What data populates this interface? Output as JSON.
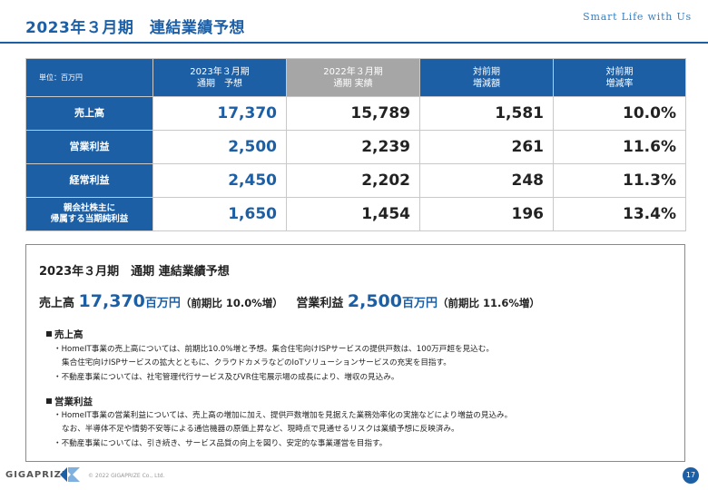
{
  "header": {
    "title": "2023年３月期　連結業績予想",
    "tagline": "Smart Life with Us"
  },
  "table": {
    "unit_label": "単位：百万円",
    "columns": [
      [
        "2023年３月期",
        "通期　予想"
      ],
      [
        "2022年３月期",
        "通期 実績"
      ],
      [
        "対前期",
        "増減額"
      ],
      [
        "対前期",
        "増減率"
      ]
    ],
    "rows": [
      {
        "label": [
          "売上高"
        ],
        "plan": "17,370",
        "actual": "15,789",
        "diff": "1,581",
        "rate": "10.0%"
      },
      {
        "label": [
          "営業利益"
        ],
        "plan": "2,500",
        "actual": "2,239",
        "diff": "261",
        "rate": "11.6%"
      },
      {
        "label": [
          "経常利益"
        ],
        "plan": "2,450",
        "actual": "2,202",
        "diff": "248",
        "rate": "11.3%"
      },
      {
        "label": [
          "親会社株主に",
          "帰属する当期純利益"
        ],
        "plan": "1,650",
        "actual": "1,454",
        "diff": "196",
        "rate": "13.4%"
      }
    ]
  },
  "summary": {
    "title": "2023年３月期　通期 連結業績予想",
    "sales_label": "売上高",
    "sales_value": "17,370",
    "sales_unit": "百万円",
    "sales_yoy": "（前期比 10.0%増）",
    "op_label": "営業利益",
    "op_value": "2,500",
    "op_unit": "百万円",
    "op_yoy": "（前期比 11.6%増）",
    "sections": [
      {
        "title": "売上高",
        "lines": [
          {
            "bullet": true,
            "text": "・HomeIT事業の売上高については、前期比10.0%増と予想。集合住宅向けISPサービスの提供戸数は、100万戸超を見込む。"
          },
          {
            "bullet": false,
            "text": "集合住宅向けISPサービスの拡大とともに、クラウドカメラなどのIoTソリューションサービスの充実を目指す。"
          },
          {
            "bullet": true,
            "text": "・不動産事業については、社宅管理代行サービス及びVR住宅展示場の成長により、増収の見込み。"
          }
        ]
      },
      {
        "title": "営業利益",
        "lines": [
          {
            "bullet": true,
            "text": "・HomeIT事業の営業利益については、売上高の増加に加え、提供戸数増加を見据えた業務効率化の実施などにより増益の見込み。"
          },
          {
            "bullet": false,
            "text": "なお、半導体不足や情勢不安等による通信機器の原価上昇など、現時点で見通せるリスクは業績予想に反映済み。"
          },
          {
            "bullet": true,
            "text": "・不動産事業については、引き続き、サービス品質の向上を図り、安定的な事業運営を目指す。"
          }
        ]
      }
    ]
  },
  "footer": {
    "logo_text": "GIGAPRIZE",
    "copyright": "© 2022 GIGAPRIZE Co., Ltd.",
    "page_number": "17"
  },
  "colors": {
    "primary": "#1d5fa5",
    "prior_header": "#a6a6a6"
  }
}
